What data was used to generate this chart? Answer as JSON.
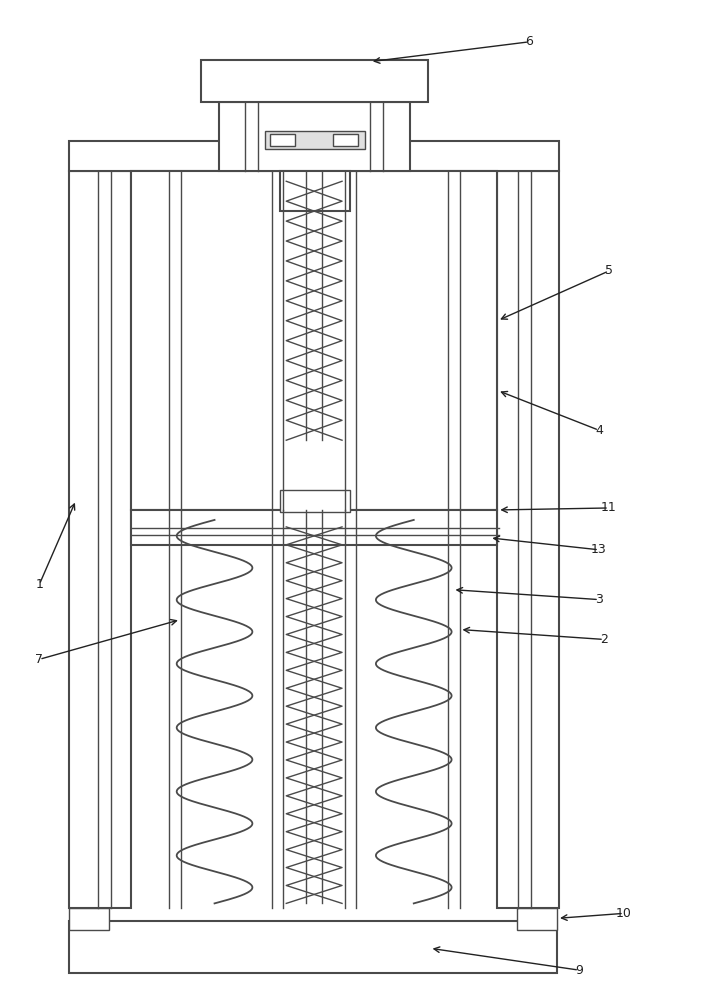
{
  "bg_color": "#ffffff",
  "lc": "#4a4a4a",
  "lw": 1.0,
  "tlw": 1.5,
  "ac": "#222222",
  "fs": 9,
  "figw": 7.03,
  "figh": 10.0,
  "dpi": 100
}
